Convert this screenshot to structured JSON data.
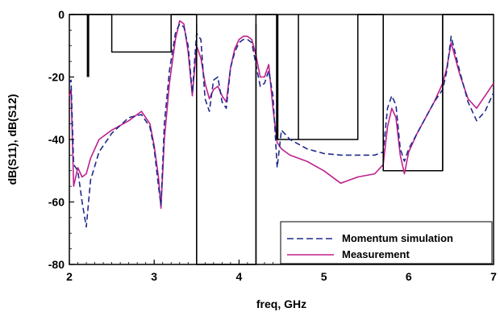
{
  "chart_data": {
    "type": "line",
    "xlabel": "freq, GHz",
    "ylabel": "dB(S11), dB(S12)",
    "xlim": [
      2,
      7
    ],
    "ylim": [
      -80,
      0
    ],
    "xticks": [
      2,
      3,
      4,
      5,
      6,
      7
    ],
    "yticks": [
      0,
      -20,
      -40,
      -60,
      -80
    ],
    "grid": false,
    "legend_position": "bottom-right",
    "series": [
      {
        "name": "Momentum simulation",
        "style": "dashed",
        "color": "#1f2a8c",
        "x": [
          2.0,
          2.02,
          2.05,
          2.1,
          2.15,
          2.2,
          2.25,
          2.35,
          2.5,
          2.7,
          2.85,
          2.95,
          3.0,
          3.05,
          3.08,
          3.12,
          3.18,
          3.25,
          3.3,
          3.35,
          3.4,
          3.45,
          3.5,
          3.55,
          3.6,
          3.65,
          3.7,
          3.75,
          3.8,
          3.85,
          3.9,
          3.95,
          4.0,
          4.05,
          4.1,
          4.15,
          4.2,
          4.25,
          4.3,
          4.35,
          4.4,
          4.45,
          4.5,
          4.6,
          4.8,
          5.0,
          5.2,
          5.4,
          5.6,
          5.7,
          5.75,
          5.8,
          5.85,
          5.9,
          5.95,
          6.0,
          6.1,
          6.2,
          6.3,
          6.4,
          6.45,
          6.5,
          6.6,
          6.7,
          6.8,
          6.9,
          7.0
        ],
        "y": [
          -22,
          -21,
          -48,
          -50,
          -60,
          -68,
          -53,
          -44,
          -38,
          -33,
          -32,
          -36,
          -43,
          -55,
          -61,
          -35,
          -18,
          -6,
          -3,
          -4,
          -10,
          -25,
          -6,
          -8,
          -27,
          -31,
          -21,
          -20,
          -28,
          -30,
          -17,
          -12,
          -9,
          -8,
          -8,
          -9,
          -16,
          -23,
          -22,
          -18,
          -26,
          -49,
          -37,
          -40,
          -43,
          -44.5,
          -45,
          -45,
          -45,
          -44,
          -30,
          -26,
          -29,
          -43,
          -47,
          -43,
          -38,
          -33,
          -28,
          -24,
          -18,
          -7,
          -18,
          -28,
          -34,
          -31,
          -25
        ]
      },
      {
        "name": "Measurement",
        "style": "solid",
        "color": "#c0208c",
        "x": [
          2.0,
          2.02,
          2.05,
          2.1,
          2.15,
          2.2,
          2.25,
          2.35,
          2.5,
          2.7,
          2.85,
          2.95,
          3.0,
          3.05,
          3.08,
          3.12,
          3.18,
          3.25,
          3.3,
          3.35,
          3.4,
          3.45,
          3.5,
          3.55,
          3.6,
          3.65,
          3.7,
          3.75,
          3.8,
          3.85,
          3.9,
          3.95,
          4.0,
          4.05,
          4.1,
          4.15,
          4.2,
          4.25,
          4.3,
          4.35,
          4.4,
          4.45,
          4.5,
          4.6,
          4.8,
          5.0,
          5.2,
          5.4,
          5.6,
          5.7,
          5.75,
          5.8,
          5.85,
          5.9,
          5.95,
          6.0,
          6.1,
          6.2,
          6.3,
          6.4,
          6.45,
          6.5,
          6.6,
          6.7,
          6.8,
          6.9,
          7.0
        ],
        "y": [
          -26,
          -24,
          -55,
          -49,
          -52,
          -51,
          -46,
          -40,
          -37,
          -34,
          -31,
          -35,
          -42,
          -52,
          -62,
          -40,
          -22,
          -8,
          -2,
          -3,
          -12,
          -26,
          -10,
          -14,
          -22,
          -27,
          -24,
          -23,
          -26,
          -28,
          -17,
          -11,
          -8,
          -7,
          -7,
          -8,
          -13,
          -20,
          -20,
          -16,
          -30,
          -41,
          -43,
          -45,
          -47,
          -50,
          -54,
          -52,
          -51,
          -48,
          -36,
          -30,
          -33,
          -45,
          -51,
          -44,
          -38,
          -33,
          -28,
          -22,
          -17,
          -9,
          -19,
          -27,
          -30,
          -26,
          -22
        ]
      },
      {
        "name": "",
        "style": "solid",
        "color": "#000000",
        "x": [
          2.0,
          2.5,
          2.5,
          3.2,
          3.2,
          3.5,
          3.5,
          4.2,
          4.2,
          4.45,
          4.45,
          4.7,
          4.7,
          5.4,
          5.4,
          5.7,
          5.7,
          6.4,
          6.4,
          7.0
        ],
        "y": [
          0,
          0,
          -12,
          -12,
          0,
          0,
          -80,
          -80,
          0,
          0,
          -40,
          -40,
          -40,
          -40,
          0,
          0,
          -50,
          -50,
          0,
          0
        ]
      }
    ],
    "markers": [
      {
        "x": 2.22,
        "y1": 0,
        "y2": -20
      },
      {
        "x": 3.5,
        "y1": -3,
        "y2": -80
      },
      {
        "x": 4.2,
        "y1": -3,
        "y2": -80
      },
      {
        "x": 4.45,
        "y1": 0,
        "y2": -40
      },
      {
        "x": 4.7,
        "y1": 0,
        "y2": -40
      },
      {
        "x": 5.7,
        "y1": 0,
        "y2": -50
      },
      {
        "x": 6.4,
        "y1": 0,
        "y2": -50
      }
    ]
  }
}
